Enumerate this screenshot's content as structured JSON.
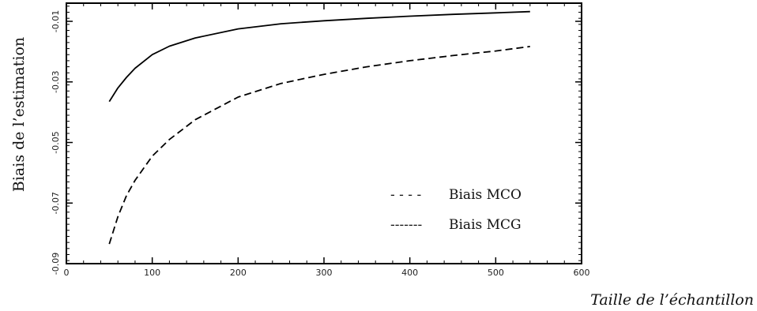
{
  "chart_data": {
    "type": "line",
    "title": "",
    "xlabel": "Taille de l’échantillon",
    "ylabel": "Biais de l’estimation",
    "xlim": [
      0,
      600
    ],
    "ylim": [
      -0.09,
      -0.004
    ],
    "xticks": [
      0,
      100,
      200,
      300,
      400,
      500,
      600
    ],
    "yticks": [
      -0.09,
      -0.07,
      -0.05,
      -0.03,
      -0.01
    ],
    "xtick_labels": [
      "0",
      "100",
      "200",
      "300",
      "400",
      "500",
      "600"
    ],
    "ytick_labels": [
      "-0.09",
      "-0.07",
      "-0.05",
      "-0.03",
      "-0.01"
    ],
    "grid": false,
    "legend_position": "bottom-right",
    "legend": [
      {
        "sample": "- - - -",
        "label": "Biais MCO"
      },
      {
        "sample": "-------",
        "label": "Biais MCG"
      }
    ],
    "series": [
      {
        "style": "dashed",
        "x": [
          50,
          60,
          70,
          80,
          100,
          120,
          150,
          200,
          250,
          300,
          350,
          400,
          450,
          500,
          540
        ],
        "y": [
          -0.0835,
          -0.0745,
          -0.0675,
          -0.0625,
          -0.0545,
          -0.049,
          -0.0425,
          -0.035,
          -0.0305,
          -0.0275,
          -0.025,
          -0.023,
          -0.0213,
          -0.0198,
          -0.0183
        ]
      },
      {
        "style": "solid",
        "x": [
          50,
          60,
          70,
          80,
          100,
          120,
          150,
          200,
          250,
          300,
          350,
          400,
          450,
          500,
          540
        ],
        "y": [
          -0.0365,
          -0.032,
          -0.0285,
          -0.0255,
          -0.021,
          -0.0182,
          -0.0155,
          -0.0125,
          -0.0108,
          -0.0098,
          -0.009,
          -0.0083,
          -0.0077,
          -0.0072,
          -0.0068
        ]
      }
    ]
  }
}
